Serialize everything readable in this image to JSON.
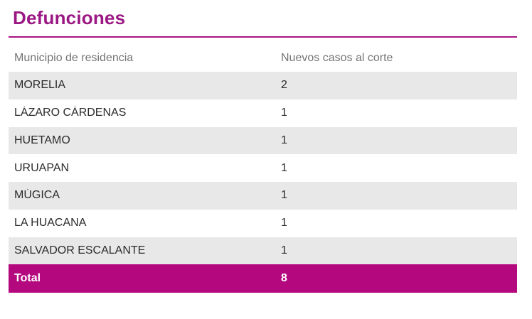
{
  "title": "Defunciones",
  "table": {
    "columns": [
      "Municipio de residencia",
      "Nuevos casos al corte"
    ],
    "rows": [
      {
        "municipio": "MORELIA",
        "casos": "2"
      },
      {
        "municipio": "LÁZARO CÁRDENAS",
        "casos": "1"
      },
      {
        "municipio": "HUETAMO",
        "casos": "1"
      },
      {
        "municipio": "URUAPAN",
        "casos": "1"
      },
      {
        "municipio": "MÚGICA",
        "casos": "1"
      },
      {
        "municipio": "LA HUACANA",
        "casos": "1"
      },
      {
        "municipio": "SALVADOR ESCALANTE",
        "casos": "1"
      }
    ],
    "total": {
      "label": "Total",
      "value": "8"
    }
  },
  "colors": {
    "title": "#9B1884",
    "rule": "#A8127F",
    "header_text": "#757575",
    "body_text": "#2B2B2B",
    "row_alt_bg": "#E8E8E8",
    "total_bg": "#B4087E",
    "total_text": "#FFFFFF"
  },
  "chart_data": {
    "type": "table",
    "title": "Defunciones",
    "columns": [
      "Municipio de residencia",
      "Nuevos casos al corte"
    ],
    "rows": [
      [
        "MORELIA",
        2
      ],
      [
        "LÁZARO CÁRDENAS",
        1
      ],
      [
        "HUETAMO",
        1
      ],
      [
        "URUAPAN",
        1
      ],
      [
        "MÚGICA",
        1
      ],
      [
        "LA HUACANA",
        1
      ],
      [
        "SALVADOR ESCALANTE",
        1
      ]
    ],
    "total_row": [
      "Total",
      8
    ],
    "layout": {
      "alternating_row_shading": true,
      "total_row_highlighted": true
    }
  }
}
